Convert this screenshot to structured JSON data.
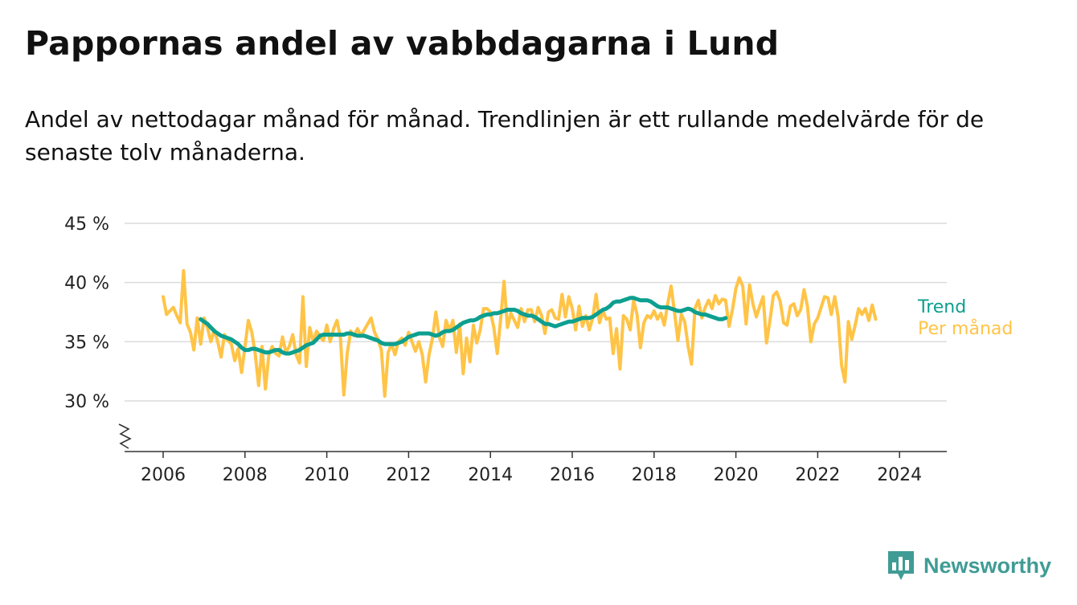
{
  "title": "Pappornas andel av vabbdagarna i Lund",
  "subtitle": "Andel av nettodagar månad för månad. Trendlinjen är ett rullande medelvärde för de senaste tolv månaderna.",
  "brand": {
    "name": "Newsworthy",
    "color": "#3f9c95",
    "icon": "newsworthy-chart-logo-icon"
  },
  "chart_data": {
    "type": "line",
    "title": "Pappornas andel av vabbdagarna i Lund",
    "xlabel": "",
    "ylabel": "",
    "xlim": [
      2005.5,
      2025.1
    ],
    "ylim": [
      25.7,
      45
    ],
    "y_axis_break": true,
    "grid": true,
    "legend_placement": "right, at line ends",
    "x_ticks": [
      2006,
      2008,
      2010,
      2012,
      2014,
      2016,
      2018,
      2020,
      2022,
      2024
    ],
    "x_tick_labels": [
      "2006",
      "2008",
      "2010",
      "2012",
      "2014",
      "2016",
      "2018",
      "2020",
      "2022",
      "2024"
    ],
    "y_ticks": [
      30,
      35,
      40,
      45
    ],
    "y_tick_labels": [
      "30 %",
      "35 %",
      "40 %",
      "45 %"
    ],
    "series": [
      {
        "name": "Per månad",
        "color": "#ffc447",
        "x_start": 2006.0,
        "x_step": 0.08333,
        "values": [
          38.8,
          37.3,
          37.6,
          37.9,
          37.2,
          36.6,
          41.0,
          36.5,
          35.8,
          34.3,
          37.0,
          34.8,
          37.0,
          36.2,
          35.0,
          36.0,
          35.0,
          33.7,
          35.6,
          35.1,
          34.8,
          33.4,
          34.4,
          32.4,
          34.6,
          36.8,
          35.8,
          34.0,
          31.3,
          34.6,
          31.0,
          33.9,
          34.6,
          34.0,
          33.8,
          35.4,
          34.1,
          34.6,
          35.6,
          33.9,
          33.2,
          38.8,
          32.9,
          36.2,
          35.0,
          35.9,
          35.4,
          35.1,
          36.4,
          35.0,
          36.1,
          36.8,
          35.3,
          30.5,
          34.0,
          35.9,
          35.5,
          36.1,
          35.5,
          36.0,
          36.5,
          37.0,
          35.8,
          35.2,
          34.3,
          30.4,
          34.1,
          34.8,
          33.9,
          35.0,
          35.3,
          34.7,
          35.8,
          35.0,
          34.2,
          35.0,
          33.9,
          31.6,
          33.9,
          35.3,
          37.5,
          35.4,
          34.6,
          36.8,
          35.9,
          36.8,
          34.1,
          36.5,
          32.3,
          35.3,
          33.3,
          36.4,
          34.9,
          36.0,
          37.8,
          37.8,
          37.5,
          36.2,
          34.0,
          36.9,
          40.1,
          36.2,
          37.4,
          36.8,
          36.2,
          37.8,
          36.7,
          37.7,
          37.7,
          36.7,
          37.9,
          37.2,
          35.7,
          37.5,
          37.7,
          37.0,
          36.9,
          39.0,
          37.1,
          38.8,
          37.8,
          36.0,
          38.0,
          36.3,
          37.2,
          36.0,
          37.0,
          39.0,
          36.6,
          37.6,
          36.9,
          37.0,
          34.0,
          36.1,
          32.7,
          37.2,
          36.9,
          36.0,
          38.5,
          37.3,
          34.5,
          36.6,
          37.2,
          37.0,
          37.6,
          36.9,
          37.4,
          36.4,
          38.2,
          39.7,
          37.5,
          35.1,
          37.3,
          36.7,
          34.6,
          33.1,
          37.8,
          38.5,
          37.0,
          37.9,
          38.5,
          37.8,
          38.9,
          38.2,
          38.6,
          38.5,
          36.3,
          37.7,
          39.5,
          40.4,
          39.7,
          36.5,
          39.8,
          38.2,
          37.1,
          38.0,
          38.8,
          34.9,
          36.8,
          38.9,
          39.2,
          38.4,
          36.6,
          36.4,
          38.0,
          38.2,
          37.2,
          37.7,
          39.4,
          38.0,
          35.0,
          36.5,
          37.0,
          37.9,
          38.8,
          38.7,
          37.3,
          38.8,
          37.1,
          33.0,
          31.6,
          36.7,
          35.2,
          36.4,
          37.8,
          37.3,
          37.8,
          36.8,
          38.1,
          36.9
        ]
      },
      {
        "name": "Trend",
        "color": "#0d9f8f",
        "x_start": 2006.917,
        "x_step": 0.08333,
        "values": [
          36.9,
          36.7,
          36.5,
          36.2,
          35.9,
          35.7,
          35.5,
          35.4,
          35.3,
          35.2,
          35.0,
          34.8,
          34.5,
          34.3,
          34.3,
          34.4,
          34.4,
          34.3,
          34.2,
          34.1,
          34.1,
          34.2,
          34.3,
          34.3,
          34.1,
          34.0,
          34.0,
          34.1,
          34.2,
          34.3,
          34.5,
          34.7,
          34.8,
          34.9,
          35.2,
          35.5,
          35.6,
          35.6,
          35.6,
          35.6,
          35.6,
          35.6,
          35.6,
          35.7,
          35.7,
          35.6,
          35.5,
          35.5,
          35.5,
          35.4,
          35.3,
          35.2,
          35.1,
          34.9,
          34.8,
          34.8,
          34.8,
          34.8,
          34.9,
          35.0,
          35.2,
          35.4,
          35.5,
          35.6,
          35.7,
          35.7,
          35.7,
          35.7,
          35.6,
          35.5,
          35.6,
          35.8,
          35.9,
          35.9,
          36.0,
          36.2,
          36.4,
          36.6,
          36.7,
          36.8,
          36.8,
          36.9,
          37.1,
          37.2,
          37.3,
          37.3,
          37.4,
          37.4,
          37.5,
          37.6,
          37.7,
          37.7,
          37.7,
          37.6,
          37.4,
          37.3,
          37.2,
          37.2,
          37.1,
          36.9,
          36.7,
          36.5,
          36.5,
          36.4,
          36.3,
          36.4,
          36.5,
          36.6,
          36.7,
          36.7,
          36.8,
          36.9,
          37.0,
          37.0,
          37.0,
          37.1,
          37.3,
          37.5,
          37.7,
          37.8,
          38.0,
          38.3,
          38.4,
          38.4,
          38.5,
          38.6,
          38.7,
          38.7,
          38.6,
          38.5,
          38.5,
          38.5,
          38.4,
          38.2,
          38.0,
          37.9,
          37.9,
          37.9,
          37.8,
          37.7,
          37.6,
          37.6,
          37.7,
          37.8,
          37.7,
          37.5,
          37.4,
          37.3,
          37.3,
          37.2,
          37.1,
          37.0,
          36.9,
          36.9,
          37.0
        ]
      }
    ]
  }
}
